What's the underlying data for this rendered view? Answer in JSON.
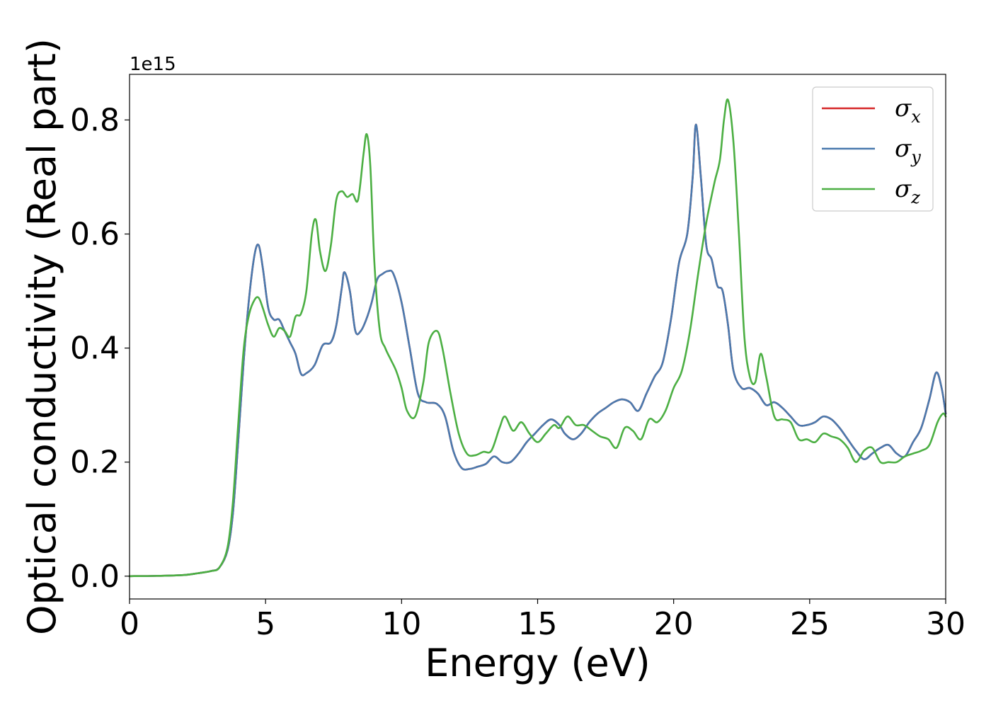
{
  "chart_data": {
    "type": "line",
    "title": "",
    "xlabel": "Energy (eV)",
    "ylabel": "Optical conductivity (Real part)",
    "y_offset_label": "1e15",
    "xlim": [
      0,
      30
    ],
    "ylim": [
      -0.04,
      0.88
    ],
    "x_ticks": [
      0,
      5,
      10,
      15,
      20,
      25,
      30
    ],
    "x_tick_labels": [
      "0",
      "5",
      "10",
      "15",
      "20",
      "25",
      "30"
    ],
    "y_ticks": [
      0.0,
      0.2,
      0.4,
      0.6,
      0.8
    ],
    "y_tick_labels": [
      "0.0",
      "0.2",
      "0.4",
      "0.6",
      "0.8"
    ],
    "grid": false,
    "legend_position": "top-right",
    "colors": {
      "sigma_x": "#d62728",
      "sigma_y": "#4a7aae",
      "sigma_z": "#4caf43"
    },
    "series": [
      {
        "name": "σx",
        "legend_base": "σ",
        "legend_sub": "x",
        "color": "#d62728",
        "x": [
          0,
          1,
          2,
          2.5,
          3,
          3.3,
          3.6,
          3.8,
          4.0,
          4.2,
          4.4,
          4.6,
          4.75,
          4.9,
          5.1,
          5.3,
          5.5,
          5.7,
          5.9,
          6.1,
          6.3,
          6.5,
          6.8,
          7.1,
          7.4,
          7.6,
          7.8,
          7.9,
          8.1,
          8.3,
          8.5,
          8.7,
          8.9,
          9.1,
          9.3,
          9.5,
          9.7,
          10.0,
          10.3,
          10.6,
          10.9,
          11.3,
          11.6,
          11.9,
          12.2,
          12.5,
          12.8,
          13.1,
          13.4,
          13.7,
          14.0,
          14.3,
          14.6,
          14.9,
          15.2,
          15.5,
          15.8,
          16.0,
          16.3,
          16.6,
          16.9,
          17.2,
          17.5,
          17.8,
          18.1,
          18.4,
          18.7,
          19.0,
          19.3,
          19.6,
          19.9,
          20.2,
          20.5,
          20.7,
          20.82,
          21.0,
          21.2,
          21.4,
          21.6,
          21.8,
          22.0,
          22.2,
          22.5,
          22.8,
          23.1,
          23.4,
          23.7,
          24.0,
          24.3,
          24.6,
          24.9,
          25.2,
          25.5,
          25.8,
          26.1,
          26.4,
          26.7,
          27.0,
          27.3,
          27.6,
          27.9,
          28.2,
          28.5,
          28.8,
          29.1,
          29.4,
          29.65,
          29.85,
          30.0
        ],
        "values": [
          0.0,
          0.0005,
          0.002,
          0.005,
          0.009,
          0.015,
          0.045,
          0.11,
          0.24,
          0.38,
          0.49,
          0.565,
          0.58,
          0.54,
          0.47,
          0.45,
          0.45,
          0.43,
          0.41,
          0.39,
          0.355,
          0.356,
          0.37,
          0.405,
          0.41,
          0.44,
          0.505,
          0.533,
          0.5,
          0.43,
          0.43,
          0.45,
          0.48,
          0.52,
          0.53,
          0.535,
          0.53,
          0.48,
          0.4,
          0.32,
          0.305,
          0.302,
          0.28,
          0.22,
          0.19,
          0.188,
          0.192,
          0.197,
          0.21,
          0.2,
          0.2,
          0.215,
          0.235,
          0.25,
          0.265,
          0.275,
          0.265,
          0.25,
          0.24,
          0.25,
          0.27,
          0.285,
          0.295,
          0.305,
          0.31,
          0.305,
          0.29,
          0.32,
          0.35,
          0.375,
          0.45,
          0.55,
          0.6,
          0.7,
          0.792,
          0.7,
          0.58,
          0.555,
          0.51,
          0.5,
          0.44,
          0.36,
          0.33,
          0.33,
          0.32,
          0.3,
          0.305,
          0.295,
          0.28,
          0.265,
          0.265,
          0.27,
          0.28,
          0.275,
          0.26,
          0.24,
          0.22,
          0.205,
          0.215,
          0.225,
          0.23,
          0.215,
          0.21,
          0.235,
          0.26,
          0.31,
          0.357,
          0.33,
          0.285
        ]
      },
      {
        "name": "σy",
        "legend_base": "σ",
        "legend_sub": "y",
        "color": "#4a7aae",
        "x": [
          0,
          1,
          2,
          2.5,
          3,
          3.3,
          3.6,
          3.8,
          4.0,
          4.2,
          4.4,
          4.6,
          4.75,
          4.9,
          5.1,
          5.3,
          5.5,
          5.7,
          5.9,
          6.1,
          6.3,
          6.5,
          6.8,
          7.1,
          7.4,
          7.6,
          7.8,
          7.9,
          8.1,
          8.3,
          8.5,
          8.7,
          8.9,
          9.1,
          9.3,
          9.5,
          9.7,
          10.0,
          10.3,
          10.6,
          10.9,
          11.3,
          11.6,
          11.9,
          12.2,
          12.5,
          12.8,
          13.1,
          13.4,
          13.7,
          14.0,
          14.3,
          14.6,
          14.9,
          15.2,
          15.5,
          15.8,
          16.0,
          16.3,
          16.6,
          16.9,
          17.2,
          17.5,
          17.8,
          18.1,
          18.4,
          18.7,
          19.0,
          19.3,
          19.6,
          19.9,
          20.2,
          20.5,
          20.7,
          20.82,
          21.0,
          21.2,
          21.4,
          21.6,
          21.8,
          22.0,
          22.2,
          22.5,
          22.8,
          23.1,
          23.4,
          23.7,
          24.0,
          24.3,
          24.6,
          24.9,
          25.2,
          25.5,
          25.8,
          26.1,
          26.4,
          26.7,
          27.0,
          27.3,
          27.6,
          27.9,
          28.2,
          28.5,
          28.8,
          29.1,
          29.4,
          29.65,
          29.85,
          30.0
        ],
        "values": [
          0.0,
          0.0005,
          0.002,
          0.005,
          0.009,
          0.015,
          0.045,
          0.11,
          0.24,
          0.38,
          0.49,
          0.565,
          0.58,
          0.54,
          0.47,
          0.45,
          0.45,
          0.43,
          0.41,
          0.39,
          0.355,
          0.356,
          0.37,
          0.405,
          0.41,
          0.44,
          0.505,
          0.533,
          0.5,
          0.43,
          0.43,
          0.45,
          0.48,
          0.52,
          0.53,
          0.535,
          0.53,
          0.48,
          0.4,
          0.32,
          0.305,
          0.302,
          0.28,
          0.22,
          0.19,
          0.188,
          0.192,
          0.197,
          0.21,
          0.2,
          0.2,
          0.215,
          0.235,
          0.25,
          0.265,
          0.275,
          0.265,
          0.25,
          0.24,
          0.25,
          0.27,
          0.285,
          0.295,
          0.305,
          0.31,
          0.305,
          0.29,
          0.32,
          0.35,
          0.375,
          0.45,
          0.55,
          0.6,
          0.7,
          0.792,
          0.7,
          0.58,
          0.555,
          0.51,
          0.5,
          0.44,
          0.36,
          0.33,
          0.33,
          0.32,
          0.3,
          0.305,
          0.295,
          0.28,
          0.265,
          0.265,
          0.27,
          0.28,
          0.275,
          0.26,
          0.24,
          0.22,
          0.205,
          0.215,
          0.225,
          0.23,
          0.215,
          0.21,
          0.235,
          0.26,
          0.31,
          0.357,
          0.33,
          0.285
        ]
      },
      {
        "name": "σz",
        "legend_base": "σ",
        "legend_sub": "z",
        "color": "#4caf43",
        "x": [
          0,
          1,
          2,
          2.5,
          3,
          3.3,
          3.6,
          3.8,
          4.0,
          4.2,
          4.4,
          4.6,
          4.75,
          4.9,
          5.1,
          5.3,
          5.5,
          5.7,
          5.9,
          6.1,
          6.3,
          6.5,
          6.7,
          6.85,
          7.0,
          7.2,
          7.4,
          7.6,
          7.8,
          8.0,
          8.2,
          8.4,
          8.6,
          8.72,
          8.85,
          9.0,
          9.2,
          9.4,
          9.6,
          9.8,
          10.0,
          10.2,
          10.5,
          10.8,
          11.0,
          11.3,
          11.5,
          11.8,
          12.1,
          12.4,
          12.7,
          13.0,
          13.3,
          13.6,
          13.8,
          14.1,
          14.4,
          14.7,
          15.0,
          15.3,
          15.6,
          15.8,
          16.1,
          16.4,
          16.7,
          17.0,
          17.3,
          17.6,
          17.9,
          18.2,
          18.5,
          18.8,
          19.1,
          19.4,
          19.7,
          20.0,
          20.3,
          20.6,
          20.9,
          21.2,
          21.5,
          21.7,
          21.85,
          22.0,
          22.2,
          22.4,
          22.6,
          22.8,
          23.0,
          23.2,
          23.4,
          23.7,
          24.0,
          24.3,
          24.6,
          24.9,
          25.2,
          25.5,
          25.8,
          26.1,
          26.4,
          26.7,
          27.0,
          27.3,
          27.6,
          27.9,
          28.2,
          28.5,
          28.8,
          29.1,
          29.4,
          29.7,
          29.9,
          30.0
        ],
        "values": [
          0.0,
          0.0005,
          0.002,
          0.005,
          0.009,
          0.015,
          0.05,
          0.13,
          0.27,
          0.4,
          0.46,
          0.485,
          0.488,
          0.47,
          0.44,
          0.42,
          0.435,
          0.43,
          0.42,
          0.455,
          0.46,
          0.5,
          0.6,
          0.625,
          0.57,
          0.535,
          0.58,
          0.66,
          0.675,
          0.665,
          0.67,
          0.66,
          0.74,
          0.775,
          0.72,
          0.55,
          0.43,
          0.4,
          0.38,
          0.36,
          0.33,
          0.29,
          0.28,
          0.34,
          0.41,
          0.43,
          0.4,
          0.32,
          0.25,
          0.215,
          0.212,
          0.218,
          0.22,
          0.26,
          0.28,
          0.255,
          0.27,
          0.25,
          0.235,
          0.25,
          0.265,
          0.26,
          0.28,
          0.265,
          0.265,
          0.255,
          0.245,
          0.24,
          0.225,
          0.26,
          0.255,
          0.24,
          0.275,
          0.27,
          0.29,
          0.33,
          0.36,
          0.43,
          0.53,
          0.62,
          0.69,
          0.73,
          0.8,
          0.835,
          0.76,
          0.6,
          0.42,
          0.35,
          0.34,
          0.39,
          0.35,
          0.28,
          0.275,
          0.27,
          0.24,
          0.24,
          0.235,
          0.25,
          0.245,
          0.24,
          0.225,
          0.2,
          0.22,
          0.225,
          0.2,
          0.2,
          0.2,
          0.21,
          0.215,
          0.22,
          0.23,
          0.27,
          0.285,
          0.28
        ]
      }
    ]
  }
}
